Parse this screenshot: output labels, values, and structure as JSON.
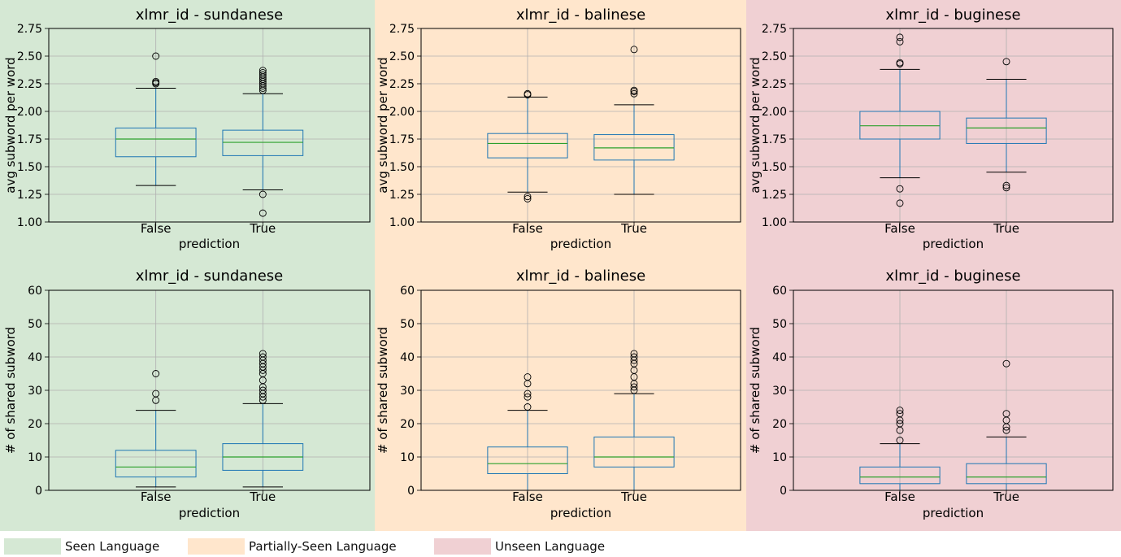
{
  "colors": {
    "seen": "#d5e8d4",
    "partial": "#ffe6cc",
    "unseen": "#f0d0d3",
    "box": "#1f77b4",
    "median": "#2ca02c",
    "grid": "#b0b0b0"
  },
  "legend": [
    {
      "label": "Seen Language",
      "color": "#d5e8d4"
    },
    {
      "label": "Partially-Seen Language",
      "color": "#ffe6cc"
    },
    {
      "label": "Unseen Language",
      "color": "#f0d0d3"
    }
  ],
  "chart_data": [
    {
      "type": "boxplot",
      "title": "xlmr_id - sundanese",
      "xlabel": "prediction",
      "ylabel": "avg subword per word",
      "ylim": [
        1.0,
        2.75
      ],
      "yticks": [
        "1.00",
        "1.25",
        "1.50",
        "1.75",
        "2.00",
        "2.25",
        "2.50",
        "2.75"
      ],
      "grid": true,
      "categories": [
        "False",
        "True"
      ],
      "boxes": [
        {
          "whislo": 1.33,
          "q1": 1.59,
          "med": 1.75,
          "q3": 1.85,
          "whishi": 2.21,
          "fliers": [
            2.25,
            2.26,
            2.27,
            2.5
          ]
        },
        {
          "whislo": 1.29,
          "q1": 1.6,
          "med": 1.72,
          "q3": 1.83,
          "whishi": 2.16,
          "fliers": [
            1.08,
            1.25,
            2.19,
            2.21,
            2.23,
            2.25,
            2.27,
            2.29,
            2.31,
            2.33,
            2.35,
            2.37
          ]
        }
      ]
    },
    {
      "type": "boxplot",
      "title": "xlmr_id - balinese",
      "xlabel": "prediction",
      "ylabel": "avg subword per word",
      "ylim": [
        1.0,
        2.75
      ],
      "yticks": [
        "1.00",
        "1.25",
        "1.50",
        "1.75",
        "2.00",
        "2.25",
        "2.50",
        "2.75"
      ],
      "grid": true,
      "categories": [
        "False",
        "True"
      ],
      "boxes": [
        {
          "whislo": 1.27,
          "q1": 1.58,
          "med": 1.71,
          "q3": 1.8,
          "whishi": 2.13,
          "fliers": [
            1.21,
            1.23,
            2.15,
            2.16
          ]
        },
        {
          "whislo": 1.25,
          "q1": 1.56,
          "med": 1.67,
          "q3": 1.79,
          "whishi": 2.06,
          "fliers": [
            2.16,
            2.18,
            2.19,
            2.56
          ]
        }
      ]
    },
    {
      "type": "boxplot",
      "title": "xlmr_id - buginese",
      "xlabel": "prediction",
      "ylabel": "avg subword per word",
      "ylim": [
        1.0,
        2.75
      ],
      "yticks": [
        "1.00",
        "1.25",
        "1.50",
        "1.75",
        "2.00",
        "2.25",
        "2.50",
        "2.75"
      ],
      "grid": true,
      "categories": [
        "False",
        "True"
      ],
      "boxes": [
        {
          "whislo": 1.4,
          "q1": 1.75,
          "med": 1.87,
          "q3": 2.0,
          "whishi": 2.38,
          "fliers": [
            1.17,
            1.3,
            2.43,
            2.44,
            2.63,
            2.67
          ]
        },
        {
          "whislo": 1.45,
          "q1": 1.71,
          "med": 1.85,
          "q3": 1.94,
          "whishi": 2.29,
          "fliers": [
            1.31,
            1.33,
            2.45
          ]
        }
      ]
    },
    {
      "type": "boxplot",
      "title": "xlmr_id - sundanese",
      "xlabel": "prediction",
      "ylabel": "# of shared subword",
      "ylim": [
        0,
        60
      ],
      "yticks": [
        "0",
        "10",
        "20",
        "30",
        "40",
        "50",
        "60"
      ],
      "grid": true,
      "categories": [
        "False",
        "True"
      ],
      "boxes": [
        {
          "whislo": 1,
          "q1": 4,
          "med": 7,
          "q3": 12,
          "whishi": 24,
          "fliers": [
            27,
            29,
            35
          ]
        },
        {
          "whislo": 1,
          "q1": 6,
          "med": 10,
          "q3": 14,
          "whishi": 26,
          "fliers": [
            27,
            28,
            29,
            30,
            31,
            33,
            35,
            36,
            37,
            38,
            39,
            40,
            41
          ]
        }
      ]
    },
    {
      "type": "boxplot",
      "title": "xlmr_id - balinese",
      "xlabel": "prediction",
      "ylabel": "# of shared subword",
      "ylim": [
        0,
        60
      ],
      "yticks": [
        "0",
        "10",
        "20",
        "30",
        "40",
        "50",
        "60"
      ],
      "grid": true,
      "categories": [
        "False",
        "True"
      ],
      "boxes": [
        {
          "whislo": 0,
          "q1": 5,
          "med": 8,
          "q3": 13,
          "whishi": 24,
          "fliers": [
            25,
            28,
            29,
            32,
            34
          ]
        },
        {
          "whislo": 0,
          "q1": 7,
          "med": 10,
          "q3": 16,
          "whishi": 29,
          "fliers": [
            30,
            31,
            32,
            34,
            36,
            38,
            39,
            40,
            41
          ]
        }
      ]
    },
    {
      "type": "boxplot",
      "title": "xlmr_id - buginese",
      "xlabel": "prediction",
      "ylabel": "# of shared subword",
      "ylim": [
        0,
        60
      ],
      "yticks": [
        "0",
        "10",
        "20",
        "30",
        "40",
        "50",
        "60"
      ],
      "grid": true,
      "categories": [
        "False",
        "True"
      ],
      "boxes": [
        {
          "whislo": 0,
          "q1": 2,
          "med": 4,
          "q3": 7,
          "whishi": 14,
          "fliers": [
            15,
            18,
            20,
            21,
            23,
            24
          ]
        },
        {
          "whislo": 0,
          "q1": 2,
          "med": 4,
          "q3": 8,
          "whishi": 16,
          "fliers": [
            18,
            19,
            21,
            23,
            38
          ]
        }
      ]
    }
  ]
}
